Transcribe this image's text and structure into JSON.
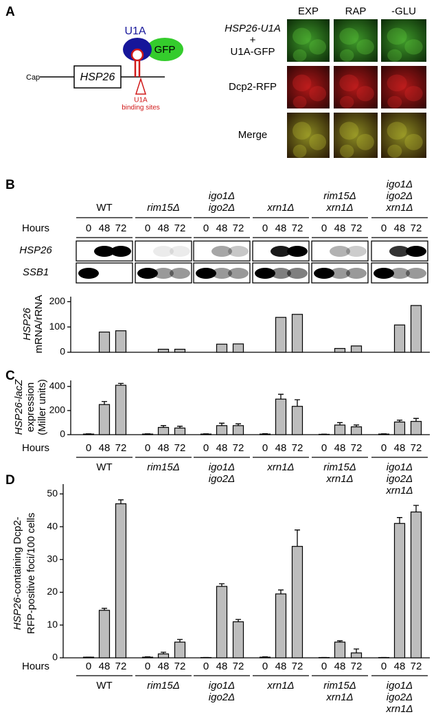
{
  "panel_labels": [
    "A",
    "B",
    "C",
    "D"
  ],
  "groups": [
    [
      "WT"
    ],
    [
      "rim15Δ"
    ],
    [
      "igo1Δ",
      "igo2Δ"
    ],
    [
      "xrn1Δ"
    ],
    [
      "rim15Δ",
      "xrn1Δ"
    ],
    [
      "igo1Δ",
      "igo2Δ",
      "xrn1Δ"
    ]
  ],
  "hours_label": "Hours",
  "hours": [
    0,
    48,
    72
  ],
  "panel_a": {
    "cap": "Cap",
    "gene": "HSP26",
    "protein": "U1A",
    "tag": "GFP",
    "sites": [
      "U1A",
      "binding sites"
    ],
    "columns": [
      "EXP",
      "RAP",
      "-GLU"
    ],
    "rows": [
      [
        "HSP26-U1A",
        "+",
        "U1A-GFP"
      ],
      [
        "Dcp2-RFP"
      ],
      [
        "Merge"
      ]
    ]
  },
  "blots": {
    "rows": [
      "HSP26",
      "SSB1"
    ]
  },
  "chart_data": [
    {
      "type": "bar",
      "y_label": [
        [
          "HSP26"
        ],
        [
          "mRNA/rRNA"
        ]
      ],
      "color": "#bdbdbd",
      "ylim": [
        0,
        220
      ],
      "yticks": [
        0,
        100,
        200
      ],
      "values": [
        [
          0,
          80,
          85
        ],
        [
          0,
          12,
          12
        ],
        [
          0,
          32,
          33
        ],
        [
          0,
          138,
          150
        ],
        [
          0,
          15,
          25
        ],
        [
          0,
          108,
          185
        ]
      ]
    },
    {
      "type": "bar",
      "y_label": [
        [
          "HSP26-lacZ"
        ],
        [
          "expression"
        ],
        [
          "(Miller units)"
        ]
      ],
      "color": "#bdbdbd",
      "ylim": [
        0,
        450
      ],
      "yticks": [
        0,
        200,
        400
      ],
      "values": [
        [
          5,
          250,
          410
        ],
        [
          5,
          60,
          55
        ],
        [
          5,
          75,
          75
        ],
        [
          5,
          295,
          235
        ],
        [
          3,
          80,
          65
        ],
        [
          5,
          105,
          110
        ]
      ],
      "errors": [
        [
          2,
          25,
          15
        ],
        [
          2,
          15,
          15
        ],
        [
          2,
          20,
          15
        ],
        [
          3,
          40,
          55
        ],
        [
          1,
          20,
          15
        ],
        [
          2,
          15,
          25
        ]
      ]
    },
    {
      "type": "bar",
      "y_label": [
        [
          "HSP26",
          "-containing Dcp2-"
        ],
        [
          "RFP-positive foci/100 cells"
        ]
      ],
      "color": "#bdbdbd",
      "ylim": [
        0,
        53
      ],
      "yticks": [
        0,
        10,
        20,
        30,
        40,
        50
      ],
      "values": [
        [
          0.2,
          14.5,
          47
        ],
        [
          0.2,
          1.2,
          4.8
        ],
        [
          0.1,
          21.8,
          11
        ],
        [
          0.2,
          19.5,
          34
        ],
        [
          0.1,
          4.8,
          1.5
        ],
        [
          0.1,
          41,
          44.5
        ]
      ],
      "errors": [
        [
          0,
          0.6,
          1.2
        ],
        [
          0.1,
          0.5,
          0.8
        ],
        [
          0,
          0.8,
          0.7
        ],
        [
          0.1,
          1.2,
          5
        ],
        [
          0,
          0.4,
          1.2
        ],
        [
          0,
          1.8,
          2
        ]
      ]
    }
  ]
}
